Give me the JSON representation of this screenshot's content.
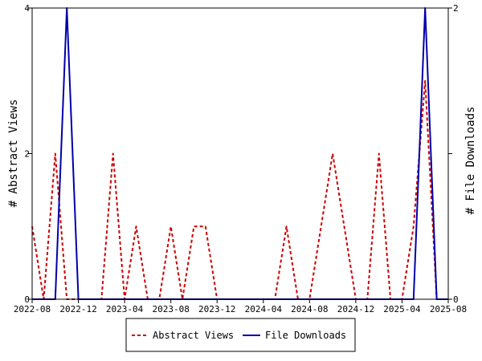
{
  "chart_data": {
    "type": "line",
    "x": [
      "2022-08",
      "2022-09",
      "2022-10",
      "2022-11",
      "2022-12",
      "2023-01",
      "2023-02",
      "2023-03",
      "2023-04",
      "2023-05",
      "2023-06",
      "2023-07",
      "2023-08",
      "2023-09",
      "2023-10",
      "2023-11",
      "2023-12",
      "2024-01",
      "2024-02",
      "2024-03",
      "2024-04",
      "2024-05",
      "2024-06",
      "2024-07",
      "2024-08",
      "2024-09",
      "2024-10",
      "2024-11",
      "2024-12",
      "2025-01",
      "2025-02",
      "2025-03",
      "2025-04",
      "2025-05",
      "2025-06",
      "2025-07",
      "2025-08"
    ],
    "x_ticks": [
      "2022-08",
      "2022-12",
      "2023-04",
      "2023-08",
      "2023-12",
      "2024-04",
      "2024-08",
      "2024-12",
      "2025-04",
      "2025-08"
    ],
    "series": [
      {
        "name": "Abstract Views",
        "axis": "left",
        "color": "#cc0000",
        "style": "dashed",
        "values": [
          1,
          0,
          2,
          0,
          0,
          0,
          0,
          2,
          0,
          1,
          0,
          0,
          1,
          0,
          1,
          1,
          0,
          0,
          0,
          0,
          0,
          0,
          1,
          0,
          0,
          1,
          2,
          1,
          0,
          0,
          2,
          0,
          0,
          1,
          3,
          0,
          0
        ]
      },
      {
        "name": "File Downloads",
        "axis": "right",
        "color": "#0000aa",
        "style": "solid",
        "values": [
          0,
          0,
          0,
          2,
          0,
          0,
          0,
          0,
          0,
          0,
          0,
          0,
          0,
          0,
          0,
          0,
          0,
          0,
          0,
          0,
          0,
          0,
          0,
          0,
          0,
          0,
          0,
          0,
          0,
          0,
          0,
          0,
          0,
          0,
          2,
          0,
          0
        ]
      }
    ],
    "ylabel_left": "# Abstract Views",
    "ylabel_right": "# File Downloads",
    "ylim_left": [
      0,
      4
    ],
    "ylim_right": [
      0,
      2
    ],
    "yticks_left": [
      "0",
      "2",
      "4"
    ],
    "yticks_right": [
      "0",
      "1",
      "2"
    ],
    "grid": false,
    "legend_position": "bottom"
  }
}
